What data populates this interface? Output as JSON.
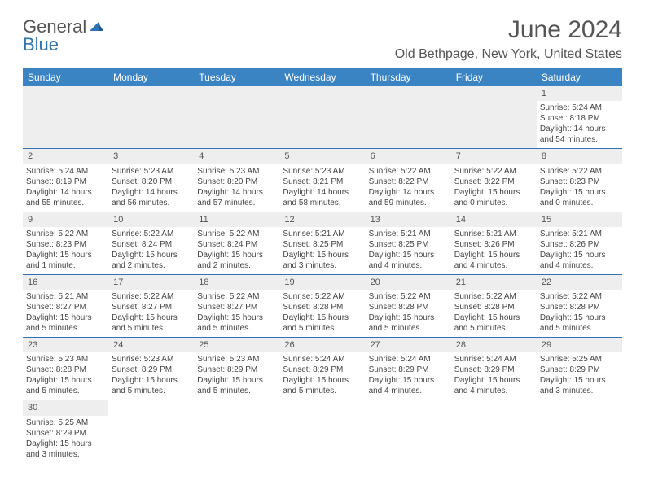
{
  "logo": {
    "text1": "General",
    "text2": "Blue"
  },
  "title": "June 2024",
  "location": "Old Bethpage, New York, United States",
  "header_bg": "#3b84c4",
  "header_fg": "#ffffff",
  "row_divider": "#2f73b5",
  "daynum_bg": "#eeeeee",
  "text_color": "#444444",
  "font_family": "Arial",
  "title_fontsize": 30,
  "location_fontsize": 16,
  "header_fontsize": 12,
  "cell_fontsize": 10,
  "days_of_week": [
    "Sunday",
    "Monday",
    "Tuesday",
    "Wednesday",
    "Thursday",
    "Friday",
    "Saturday"
  ],
  "weeks": [
    [
      null,
      null,
      null,
      null,
      null,
      null,
      {
        "n": "1",
        "sunrise": "Sunrise: 5:24 AM",
        "sunset": "Sunset: 8:18 PM",
        "daylight": "Daylight: 14 hours and 54 minutes."
      }
    ],
    [
      {
        "n": "2",
        "sunrise": "Sunrise: 5:24 AM",
        "sunset": "Sunset: 8:19 PM",
        "daylight": "Daylight: 14 hours and 55 minutes."
      },
      {
        "n": "3",
        "sunrise": "Sunrise: 5:23 AM",
        "sunset": "Sunset: 8:20 PM",
        "daylight": "Daylight: 14 hours and 56 minutes."
      },
      {
        "n": "4",
        "sunrise": "Sunrise: 5:23 AM",
        "sunset": "Sunset: 8:20 PM",
        "daylight": "Daylight: 14 hours and 57 minutes."
      },
      {
        "n": "5",
        "sunrise": "Sunrise: 5:23 AM",
        "sunset": "Sunset: 8:21 PM",
        "daylight": "Daylight: 14 hours and 58 minutes."
      },
      {
        "n": "6",
        "sunrise": "Sunrise: 5:22 AM",
        "sunset": "Sunset: 8:22 PM",
        "daylight": "Daylight: 14 hours and 59 minutes."
      },
      {
        "n": "7",
        "sunrise": "Sunrise: 5:22 AM",
        "sunset": "Sunset: 8:22 PM",
        "daylight": "Daylight: 15 hours and 0 minutes."
      },
      {
        "n": "8",
        "sunrise": "Sunrise: 5:22 AM",
        "sunset": "Sunset: 8:23 PM",
        "daylight": "Daylight: 15 hours and 0 minutes."
      }
    ],
    [
      {
        "n": "9",
        "sunrise": "Sunrise: 5:22 AM",
        "sunset": "Sunset: 8:23 PM",
        "daylight": "Daylight: 15 hours and 1 minute."
      },
      {
        "n": "10",
        "sunrise": "Sunrise: 5:22 AM",
        "sunset": "Sunset: 8:24 PM",
        "daylight": "Daylight: 15 hours and 2 minutes."
      },
      {
        "n": "11",
        "sunrise": "Sunrise: 5:22 AM",
        "sunset": "Sunset: 8:24 PM",
        "daylight": "Daylight: 15 hours and 2 minutes."
      },
      {
        "n": "12",
        "sunrise": "Sunrise: 5:21 AM",
        "sunset": "Sunset: 8:25 PM",
        "daylight": "Daylight: 15 hours and 3 minutes."
      },
      {
        "n": "13",
        "sunrise": "Sunrise: 5:21 AM",
        "sunset": "Sunset: 8:25 PM",
        "daylight": "Daylight: 15 hours and 4 minutes."
      },
      {
        "n": "14",
        "sunrise": "Sunrise: 5:21 AM",
        "sunset": "Sunset: 8:26 PM",
        "daylight": "Daylight: 15 hours and 4 minutes."
      },
      {
        "n": "15",
        "sunrise": "Sunrise: 5:21 AM",
        "sunset": "Sunset: 8:26 PM",
        "daylight": "Daylight: 15 hours and 4 minutes."
      }
    ],
    [
      {
        "n": "16",
        "sunrise": "Sunrise: 5:21 AM",
        "sunset": "Sunset: 8:27 PM",
        "daylight": "Daylight: 15 hours and 5 minutes."
      },
      {
        "n": "17",
        "sunrise": "Sunrise: 5:22 AM",
        "sunset": "Sunset: 8:27 PM",
        "daylight": "Daylight: 15 hours and 5 minutes."
      },
      {
        "n": "18",
        "sunrise": "Sunrise: 5:22 AM",
        "sunset": "Sunset: 8:27 PM",
        "daylight": "Daylight: 15 hours and 5 minutes."
      },
      {
        "n": "19",
        "sunrise": "Sunrise: 5:22 AM",
        "sunset": "Sunset: 8:28 PM",
        "daylight": "Daylight: 15 hours and 5 minutes."
      },
      {
        "n": "20",
        "sunrise": "Sunrise: 5:22 AM",
        "sunset": "Sunset: 8:28 PM",
        "daylight": "Daylight: 15 hours and 5 minutes."
      },
      {
        "n": "21",
        "sunrise": "Sunrise: 5:22 AM",
        "sunset": "Sunset: 8:28 PM",
        "daylight": "Daylight: 15 hours and 5 minutes."
      },
      {
        "n": "22",
        "sunrise": "Sunrise: 5:22 AM",
        "sunset": "Sunset: 8:28 PM",
        "daylight": "Daylight: 15 hours and 5 minutes."
      }
    ],
    [
      {
        "n": "23",
        "sunrise": "Sunrise: 5:23 AM",
        "sunset": "Sunset: 8:28 PM",
        "daylight": "Daylight: 15 hours and 5 minutes."
      },
      {
        "n": "24",
        "sunrise": "Sunrise: 5:23 AM",
        "sunset": "Sunset: 8:29 PM",
        "daylight": "Daylight: 15 hours and 5 minutes."
      },
      {
        "n": "25",
        "sunrise": "Sunrise: 5:23 AM",
        "sunset": "Sunset: 8:29 PM",
        "daylight": "Daylight: 15 hours and 5 minutes."
      },
      {
        "n": "26",
        "sunrise": "Sunrise: 5:24 AM",
        "sunset": "Sunset: 8:29 PM",
        "daylight": "Daylight: 15 hours and 5 minutes."
      },
      {
        "n": "27",
        "sunrise": "Sunrise: 5:24 AM",
        "sunset": "Sunset: 8:29 PM",
        "daylight": "Daylight: 15 hours and 4 minutes."
      },
      {
        "n": "28",
        "sunrise": "Sunrise: 5:24 AM",
        "sunset": "Sunset: 8:29 PM",
        "daylight": "Daylight: 15 hours and 4 minutes."
      },
      {
        "n": "29",
        "sunrise": "Sunrise: 5:25 AM",
        "sunset": "Sunset: 8:29 PM",
        "daylight": "Daylight: 15 hours and 3 minutes."
      }
    ],
    [
      {
        "n": "30",
        "sunrise": "Sunrise: 5:25 AM",
        "sunset": "Sunset: 8:29 PM",
        "daylight": "Daylight: 15 hours and 3 minutes."
      },
      null,
      null,
      null,
      null,
      null,
      null
    ]
  ]
}
